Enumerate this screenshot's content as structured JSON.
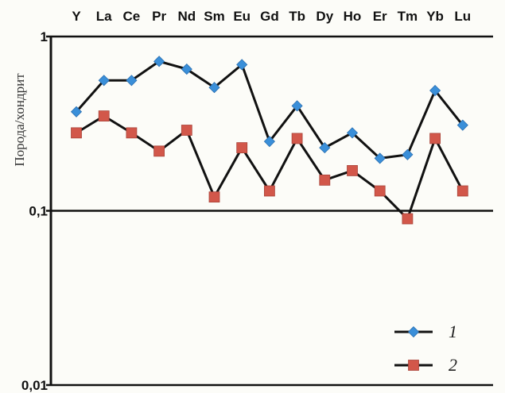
{
  "chart_data": {
    "type": "line",
    "title": "",
    "xlabel": "",
    "ylabel": "Порода/хондрит",
    "yscale": "log",
    "ylim": [
      0.01,
      1
    ],
    "yticks": [
      {
        "value": 1,
        "label": "1"
      },
      {
        "value": 0.1,
        "label": "0,1"
      },
      {
        "value": 0.01,
        "label": "0,01"
      }
    ],
    "categories": [
      "Y",
      "La",
      "Ce",
      "Pr",
      "Nd",
      "Sm",
      "Eu",
      "Gd",
      "Tb",
      "Dy",
      "Ho",
      "Er",
      "Tm",
      "Yb",
      "Lu"
    ],
    "x_axis_position": "top",
    "grid": false,
    "legend_position": "bottom-right",
    "series": [
      {
        "name": "1",
        "color": "#3a8fd9",
        "marker": "diamond",
        "values": [
          0.37,
          0.56,
          0.56,
          0.72,
          0.65,
          0.51,
          0.69,
          0.25,
          0.4,
          0.23,
          0.28,
          0.2,
          0.21,
          0.49,
          0.31
        ]
      },
      {
        "name": "2",
        "color": "#d2574a",
        "marker": "square",
        "values": [
          0.28,
          0.35,
          0.28,
          0.22,
          0.29,
          0.12,
          0.23,
          0.13,
          0.26,
          0.15,
          0.17,
          0.13,
          0.09,
          0.26,
          0.13
        ]
      }
    ]
  }
}
